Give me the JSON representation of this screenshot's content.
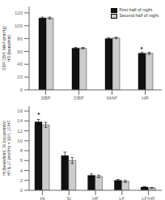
{
  "chart_data": [
    {
      "type": "bar",
      "categories": [
        "SBP",
        "DBP",
        "MAP",
        "HR"
      ],
      "series": [
        {
          "name": "First half of night",
          "color": "#111111",
          "values": [
            112,
            65,
            80,
            57
          ],
          "errors": [
            1.5,
            1.2,
            1.2,
            1.5
          ]
        },
        {
          "name": "Second half of night",
          "color": "#cccccc",
          "values": [
            112,
            65,
            81,
            57
          ],
          "errors": [
            1.5,
            1.2,
            1.2,
            1.5
          ]
        }
      ],
      "ylabel": "SBP, DBP, MAP (mmHg)\nHR (beats/min)",
      "ylim": [
        0,
        130
      ],
      "yticks": [
        0,
        20,
        40,
        60,
        80,
        100,
        120
      ],
      "annotations": [
        {
          "text": "*",
          "category": "HR",
          "series": "First half of night",
          "y": 63
        }
      ],
      "legend": "upper right"
    },
    {
      "type": "bar",
      "categories": [
        "Ht",
        "St",
        "HF",
        "LF",
        "LF/HF"
      ],
      "series": [
        {
          "name": "First half of night",
          "color": "#111111",
          "values": [
            13.8,
            7.0,
            3.0,
            2.0,
            0.65
          ],
          "errors": [
            0.5,
            0.7,
            0.3,
            0.2,
            0.08
          ]
        },
        {
          "name": "Second half of night",
          "color": "#cccccc",
          "values": [
            13.2,
            6.0,
            2.8,
            1.8,
            0.5
          ],
          "errors": [
            0.5,
            0.6,
            0.25,
            0.2,
            0.07
          ]
        }
      ],
      "ylabel": "Ht (beats/min), St (occurs/min)\nHP & LF (ms²/Hz × 10²), LF/HF",
      "ylim": [
        0,
        17
      ],
      "yticks": [
        0,
        2,
        4,
        6,
        8,
        10,
        12,
        14,
        16
      ],
      "annotations": [
        {
          "text": "*",
          "category": "Ht",
          "series": "First half of night",
          "y": 15.2
        }
      ],
      "legend": false
    }
  ]
}
